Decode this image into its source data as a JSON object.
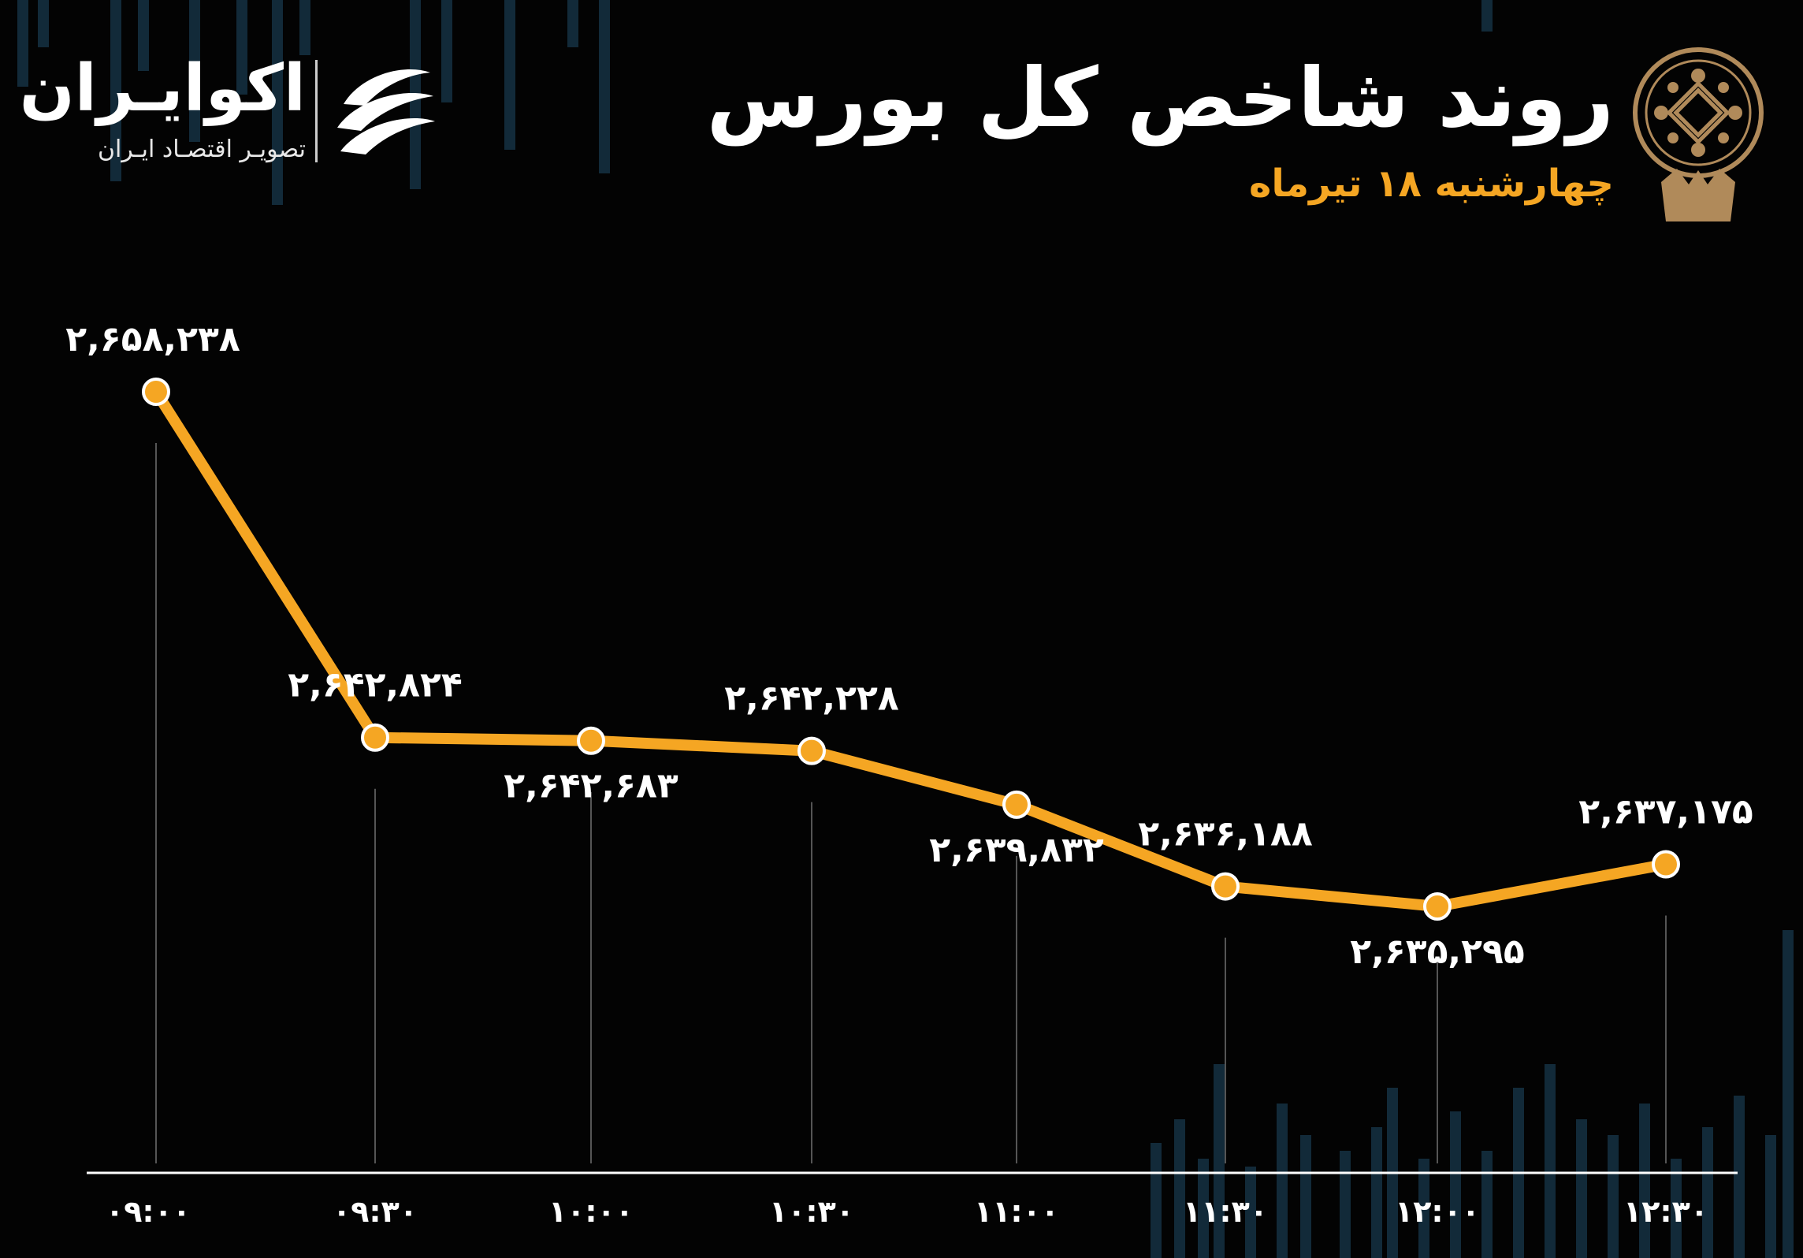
{
  "header": {
    "title": "روند شاخص کل بورس",
    "subtitle": "چهارشنبه ۱۸ تیرماه",
    "logo_icon": "tehran-stock-exchange-emblem-icon"
  },
  "brand": {
    "name": "اکوایـران",
    "tagline": "تصویـر اقتصـاد ایـران",
    "mark_icon": "ecoiran-wave-logo-icon"
  },
  "colors": {
    "background": "#030303",
    "line": "#f5a623",
    "marker": "#f5a623",
    "label": "#ffffff",
    "subtitle": "#f5a623",
    "gridline": "#555555",
    "background_bars": "#163447"
  },
  "chart_data": {
    "type": "line",
    "x": [
      "۰۹:۰۰",
      "۰۹:۳۰",
      "۱۰:۰۰",
      "۱۰:۳۰",
      "۱۱:۰۰",
      "۱۱:۳۰",
      "۱۲:۰۰",
      "۱۲:۳۰"
    ],
    "values": [
      2658238,
      2642824,
      2642683,
      2642228,
      2639832,
      2636188,
      2635295,
      2637175
    ],
    "labels": [
      "۲,۶۵۸,۲۳۸",
      "۲,۶۴۲,۸۲۴",
      "۲,۶۴۲,۶۸۳",
      "۲,۶۴۲,۲۲۸",
      "۲,۶۳۹,۸۳۲",
      "۲,۶۳۶,۱۸۸",
      "۲,۶۳۵,۲۹۵",
      "۲,۶۳۷,۱۷۵"
    ],
    "label_positions": [
      "above",
      "above",
      "below",
      "above",
      "below",
      "above",
      "below",
      "above"
    ],
    "title": "روند شاخص کل بورس",
    "xlabel": "",
    "ylabel": "",
    "grid": "vertical-drop-lines",
    "legend": "none"
  }
}
